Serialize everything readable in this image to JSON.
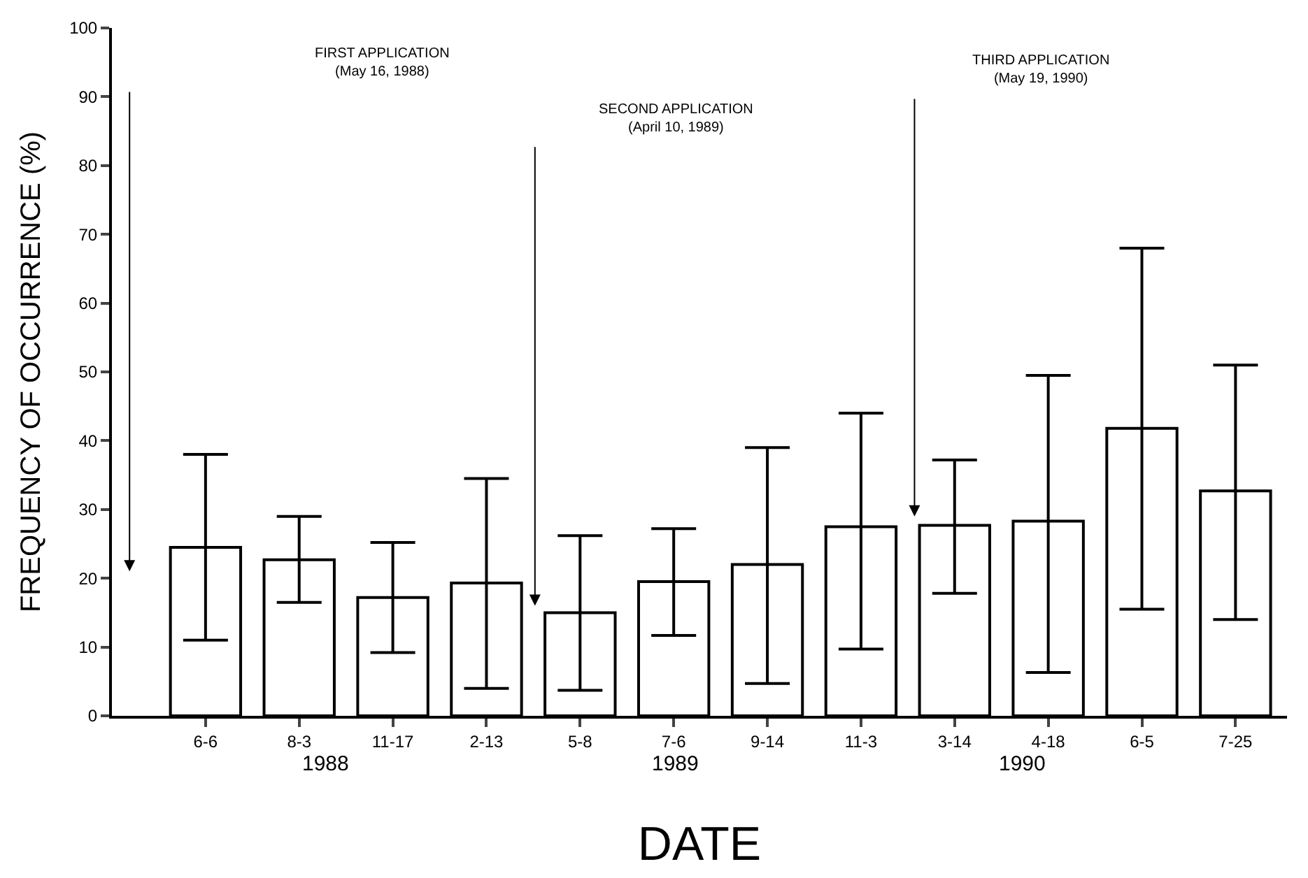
{
  "chart_data": {
    "type": "bar",
    "xlabel": "DATE",
    "ylabel": "FREQUENCY OF OCCURRENCE (%)",
    "categories": [
      "6-6",
      "8-3",
      "11-17",
      "2-13",
      "5-8",
      "7-6",
      "9-14",
      "11-3",
      "3-14",
      "4-18",
      "6-5",
      "7-25"
    ],
    "values": [
      24.5,
      22.7,
      17.2,
      19.3,
      15,
      19.5,
      22,
      27.5,
      27.7,
      28.3,
      41.8,
      32.7
    ],
    "errors": [
      [
        11,
        38
      ],
      [
        16.5,
        29
      ],
      [
        9.2,
        25.2
      ],
      [
        4,
        34.5
      ],
      [
        3.7,
        26.2
      ],
      [
        11.7,
        27.2
      ],
      [
        4.7,
        39
      ],
      [
        9.7,
        44
      ],
      [
        17.8,
        37.2
      ],
      [
        6.3,
        49.5
      ],
      [
        15.5,
        68
      ],
      [
        14,
        51
      ]
    ],
    "color": "#ffffff",
    "ylim": [
      0,
      100
    ],
    "yticks": [
      0,
      10,
      20,
      30,
      40,
      50,
      60,
      70,
      80,
      90,
      100
    ],
    "annotations": [
      "FIRST APPLICATION\n(May 16, 1988)",
      "SECOND APPLICATION\n(April 10, 1989)",
      "THIRD APPLICATION\n(May 19, 1990)",
      "1988",
      "1989",
      "1990"
    ]
  }
}
